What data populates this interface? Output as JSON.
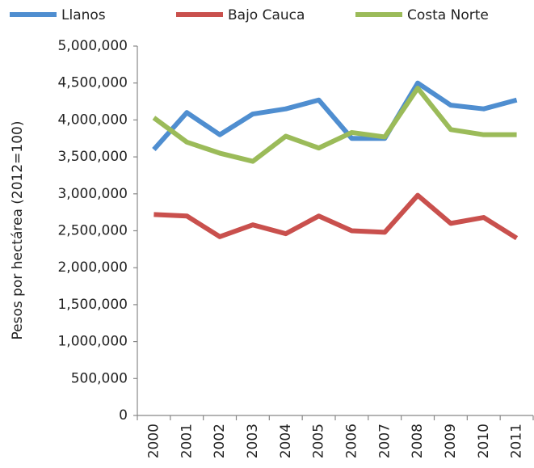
{
  "chart_data": {
    "type": "line",
    "y_label": "Pesos por hectárea (2012=100)",
    "categories": [
      "2000",
      "2001",
      "2002",
      "2003",
      "2004",
      "2005",
      "2006",
      "2007",
      "2008",
      "2009",
      "2010",
      "2011"
    ],
    "series": [
      {
        "name": "Llanos",
        "color": "#4f8ed0",
        "values": [
          3600000,
          4100000,
          3800000,
          4080000,
          4150000,
          4270000,
          3750000,
          3750000,
          4500000,
          4200000,
          4150000,
          4270000
        ]
      },
      {
        "name": "Bajo Cauca",
        "color": "#c9504d",
        "values": [
          2720000,
          2700000,
          2420000,
          2580000,
          2460000,
          2700000,
          2500000,
          2480000,
          2980000,
          2600000,
          2680000,
          2400000
        ]
      },
      {
        "name": "Costa Norte",
        "color": "#9bbb59",
        "values": [
          4030000,
          3700000,
          3550000,
          3440000,
          3780000,
          3620000,
          3830000,
          3770000,
          4430000,
          3870000,
          3800000,
          3800000
        ]
      }
    ],
    "ylim": [
      0,
      5000000
    ],
    "yticks": [
      0,
      {
        "value": 500000,
        "label": "500,000"
      },
      {
        "value": 1000000,
        "label": "1,000,000"
      },
      {
        "value": 1500000,
        "label": "1,500,000"
      },
      {
        "value": 2000000,
        "label": "2,000,000"
      },
      {
        "value": 2500000,
        "label": "2,500,000"
      },
      {
        "value": 3000000,
        "label": "3,000,000"
      },
      {
        "value": 3500000,
        "label": "3,500,000"
      },
      {
        "value": 4000000,
        "label": "4,000,000"
      },
      {
        "value": 4500000,
        "label": "4,500,000"
      },
      {
        "value": 5000000,
        "label": "5,000,000"
      }
    ],
    "grid": false
  }
}
